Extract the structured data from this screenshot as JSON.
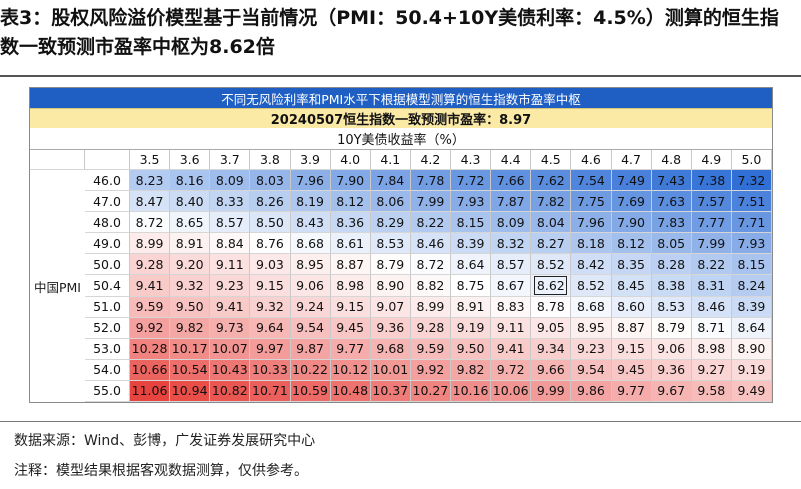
{
  "title": "表3：股权风险溢价模型基于当前情况（PMI：50.4+10Y美债利率：4.5%）测算的恒生指数一致预测市盈率中枢为8.62倍",
  "table_header": "不同无风险利率和PMI水平下根据模型测算的恒生指数市盈率中枢",
  "table_subheader": "20240507恒生指数一致预测市盈率：8.97",
  "unit_row": "10Y美债收益率（%）",
  "row_group_label": "中国PMI",
  "source": "数据来源：Wind、彭博，广发证券发展研究中心",
  "remark": "注释：模型结果根据客观数据测算，仅供参考。",
  "highlight": {
    "row": "50.4",
    "col": "4.5"
  },
  "colors": {
    "header_bg": "#1f5fc4",
    "subheader_bg": "#fbe9a6",
    "low": "#2f6fd6",
    "mid": "#ffffff",
    "high": "#e8443f"
  },
  "chart_data": {
    "type": "heatmap",
    "title": "不同无风险利率和PMI水平下根据模型测算的恒生指数市盈率中枢",
    "xlabel": "10Y美债收益率（%）",
    "ylabel": "中国PMI",
    "x": [
      "3.5",
      "3.6",
      "3.7",
      "3.8",
      "3.9",
      "4.0",
      "4.1",
      "4.2",
      "4.3",
      "4.4",
      "4.5",
      "4.6",
      "4.7",
      "4.8",
      "4.9",
      "5.0"
    ],
    "y": [
      "46.0",
      "47.0",
      "48.0",
      "49.0",
      "50.0",
      "50.4",
      "51.0",
      "52.0",
      "53.0",
      "54.0",
      "55.0"
    ],
    "values": [
      [
        "8.23",
        "8.16",
        "8.09",
        "8.03",
        "7.96",
        "7.90",
        "7.84",
        "7.78",
        "7.72",
        "7.66",
        "7.62",
        "7.54",
        "7.49",
        "7.43",
        "7.38",
        "7.32"
      ],
      [
        "8.47",
        "8.40",
        "8.33",
        "8.26",
        "8.19",
        "8.12",
        "8.06",
        "7.99",
        "7.93",
        "7.87",
        "7.82",
        "7.75",
        "7.69",
        "7.63",
        "7.57",
        "7.51"
      ],
      [
        "8.72",
        "8.65",
        "8.57",
        "8.50",
        "8.43",
        "8.36",
        "8.29",
        "8.22",
        "8.15",
        "8.09",
        "8.04",
        "7.96",
        "7.90",
        "7.83",
        "7.77",
        "7.71"
      ],
      [
        "8.99",
        "8.91",
        "8.84",
        "8.76",
        "8.68",
        "8.61",
        "8.53",
        "8.46",
        "8.39",
        "8.32",
        "8.27",
        "8.18",
        "8.12",
        "8.05",
        "7.99",
        "7.93"
      ],
      [
        "9.28",
        "9.20",
        "9.11",
        "9.03",
        "8.95",
        "8.87",
        "8.79",
        "8.72",
        "8.64",
        "8.57",
        "8.52",
        "8.42",
        "8.35",
        "8.28",
        "8.22",
        "8.15"
      ],
      [
        "9.41",
        "9.32",
        "9.23",
        "9.15",
        "9.06",
        "8.98",
        "8.90",
        "8.82",
        "8.75",
        "8.67",
        "8.62",
        "8.52",
        "8.45",
        "8.38",
        "8.31",
        "8.24"
      ],
      [
        "9.59",
        "9.50",
        "9.41",
        "9.32",
        "9.24",
        "9.15",
        "9.07",
        "8.99",
        "8.91",
        "8.83",
        "8.78",
        "8.68",
        "8.60",
        "8.53",
        "8.46",
        "8.39"
      ],
      [
        "9.92",
        "9.82",
        "9.73",
        "9.64",
        "9.54",
        "9.45",
        "9.36",
        "9.28",
        "9.19",
        "9.11",
        "9.05",
        "8.95",
        "8.87",
        "8.79",
        "8.71",
        "8.64"
      ],
      [
        "10.28",
        "10.17",
        "10.07",
        "9.97",
        "9.87",
        "9.77",
        "9.68",
        "9.59",
        "9.50",
        "9.41",
        "9.34",
        "9.23",
        "9.15",
        "9.06",
        "8.98",
        "8.90"
      ],
      [
        "10.66",
        "10.54",
        "10.43",
        "10.33",
        "10.22",
        "10.12",
        "10.01",
        "9.92",
        "9.82",
        "9.72",
        "9.66",
        "9.54",
        "9.45",
        "9.36",
        "9.27",
        "9.19"
      ],
      [
        "11.06",
        "10.94",
        "10.82",
        "10.71",
        "10.59",
        "10.48",
        "10.37",
        "10.27",
        "10.16",
        "10.06",
        "9.99",
        "9.86",
        "9.77",
        "9.67",
        "9.58",
        "9.49"
      ]
    ],
    "vmin": 7.32,
    "vmax": 11.06
  }
}
